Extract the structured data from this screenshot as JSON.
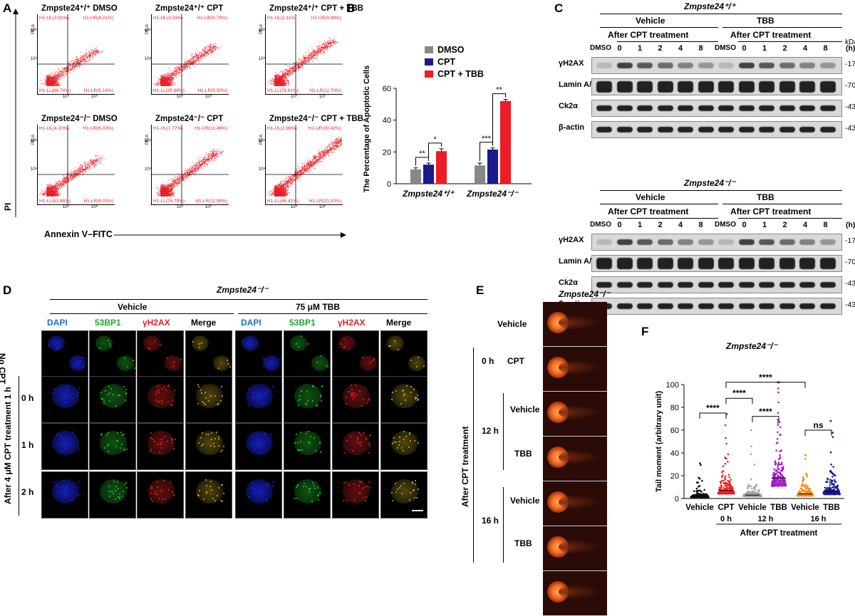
{
  "panels": {
    "A": {
      "label": "A",
      "plots": [
        {
          "title": "Zmpste24⁺/⁺ DMSO",
          "ul": "H1-UL(3.92%)",
          "ur": "H1-UR(4.21%)",
          "ll": "H1-LL(86.74%)",
          "lr": "H1-LR(5.14%)",
          "density": 0.35
        },
        {
          "title": "Zmpste24⁺/⁺ CPT",
          "ul": "H1-UL(3.03%)",
          "ur": "H1-UR(5.79%)",
          "ll": "H1-LL(85.68%)",
          "lr": "H1-LR(5.50%)",
          "density": 0.45
        },
        {
          "title": "Zmpste24⁺/⁺ CPT + TBB",
          "ul": "H1-UL(2.11%)",
          "ur": "H1-UR(9.98%)",
          "ll": "H1-LL(76.61%)",
          "lr": "H1-LR(11.70%)",
          "density": 0.6
        },
        {
          "title": "Zmpste24⁻/⁻ DMSO",
          "ul": "H1-UL(4.10%)",
          "ur": "H1-UR(6.03%)",
          "ll": "H1-LL(83.86%)",
          "lr": "H1-LR(6.01%)",
          "density": 0.4
        },
        {
          "title": "Zmpste24⁻/⁻ CPT",
          "ul": "H1-UL(1.77%)",
          "ur": "H1-UR(11.46%)",
          "ll": "H1-LL(74.79%)",
          "lr": "H1-LR(11.98%)",
          "density": 0.6
        },
        {
          "title": "Zmpste24⁻/⁻ CPT + TBB",
          "ul": "H1-UL(2.98%)",
          "ur": "H1-UR(30.42%)",
          "ll": "H1-LL(46.41%)",
          "lr": "H1-LR(20.20%)",
          "density": 0.95
        }
      ],
      "ylabel": "PI",
      "xlabel": "Annexin V–FITC",
      "panel_ylabel": "PE-A",
      "ticks": {
        "x1": "10⁴",
        "x2": "10⁵",
        "y1": "10⁴",
        "y2": "10⁵"
      }
    },
    "B": {
      "label": "B",
      "chart_data": {
        "type": "bar",
        "categories": [
          "Zmpste24⁺/⁺",
          "Zmpste24⁻/⁻"
        ],
        "series": [
          {
            "name": "DMSO",
            "values": [
              9,
              11.5
            ],
            "errors": [
              1,
              1.5
            ],
            "color": "#888888"
          },
          {
            "name": "CPT",
            "values": [
              12,
              21.5
            ],
            "errors": [
              1,
              1
            ],
            "color": "#1a1a8c"
          },
          {
            "name": "CPT + TBB",
            "values": [
              20.5,
              52
            ],
            "errors": [
              1.5,
              1
            ],
            "color": "#ee1c24"
          }
        ],
        "ylabel": "The Percentage of Apoptotic Cells",
        "ylim": [
          0,
          60
        ],
        "yticks": [
          "0",
          "20",
          "40",
          "60"
        ],
        "legend": "top-left",
        "significance": [
          {
            "group": 0,
            "from": 0,
            "to": 1,
            "label": "**"
          },
          {
            "group": 0,
            "from": 1,
            "to": 2,
            "label": "*"
          },
          {
            "group": 1,
            "from": 0,
            "to": 1,
            "label": "***"
          },
          {
            "group": 1,
            "from": 1,
            "to": 2,
            "label": "**"
          }
        ]
      }
    },
    "C": {
      "label": "C",
      "top_genotype": "Zmpste24⁺/⁺",
      "bottom_genotype": "Zmpste24⁻/⁻",
      "vehicle": "Vehicle",
      "tbb": "TBB",
      "after_cpt": "After CPT treatment",
      "lanes": [
        "DMSO",
        "0",
        "1",
        "2",
        "4",
        "8",
        "DMSO",
        "0",
        "1",
        "2",
        "4",
        "8"
      ],
      "h": "(h)",
      "kda": "kDa",
      "rows": [
        {
          "name": "γH2AX",
          "kda": "17"
        },
        {
          "name": "Lamin A/C",
          "kda": "70"
        },
        {
          "name": "Ck2α",
          "kda": "43"
        },
        {
          "name": "β-actin",
          "kda": "43"
        }
      ]
    },
    "D": {
      "label": "D",
      "genotype": "Zmpste24⁻/⁻",
      "vehicle": "Vehicle",
      "tbb": "75 μM TBB",
      "channels": [
        {
          "name": "DAPI",
          "color": "#1f6fd0"
        },
        {
          "name": "53BP1",
          "color": "#1fa52e"
        },
        {
          "name": "γH2AX",
          "color": "#e8202a"
        },
        {
          "name": "Merge",
          "color": "#000000"
        }
      ],
      "no_cpt": "No CPT",
      "times": [
        "0 h",
        "1 h",
        "2 h"
      ],
      "side": "After  4 μM CPT treatment 1 h"
    },
    "E": {
      "label": "E",
      "genotype": "Zmpste24⁻/⁻",
      "rows": [
        "Vehicle",
        "CPT",
        "Vehicle",
        "TBB",
        "Vehicle",
        "TBB"
      ],
      "time_0": "0 h",
      "time_12": "12 h",
      "time_16": "16 h",
      "side": "After CPT treatment"
    },
    "F": {
      "label": "F",
      "chart_data": {
        "type": "scatter",
        "title": "Zmpste24⁻/⁻",
        "ylabel": "Tail moment (arbitrary unit)",
        "ylim": [
          0,
          100
        ],
        "yticks": [
          "0",
          "20",
          "40",
          "60",
          "80",
          "100"
        ],
        "categories": [
          "Vehicle",
          "CPT",
          "Vehicle",
          "TBB",
          "Vehicle",
          "TBB"
        ],
        "groups": [
          {
            "name": "Vehicle",
            "color": "#111111",
            "median": 2,
            "max": 33
          },
          {
            "name": "CPT",
            "color": "#ee1c24",
            "median": 7,
            "max": 74
          },
          {
            "name": "Vehicle",
            "color": "#a0a0a0",
            "median": 3,
            "max": 62
          },
          {
            "name": "TBB",
            "color": "#a020c8",
            "median": 18,
            "max": 102
          },
          {
            "name": "Vehicle",
            "color": "#f28c1a",
            "median": 4,
            "max": 38
          },
          {
            "name": "TBB",
            "color": "#1a1a8c",
            "median": 6,
            "max": 68
          }
        ],
        "time_labels": [
          "0 h",
          "12 h",
          "16 h"
        ],
        "xlabel": "After CPT treatment",
        "significance": [
          {
            "from": 0,
            "to": 1,
            "label": "****"
          },
          {
            "from": 1,
            "to": 2,
            "label": "****"
          },
          {
            "from": 2,
            "to": 3,
            "label": "****"
          },
          {
            "from": 1,
            "to": 4,
            "label": "****"
          },
          {
            "from": 4,
            "to": 5,
            "label": "ns"
          }
        ]
      }
    }
  }
}
